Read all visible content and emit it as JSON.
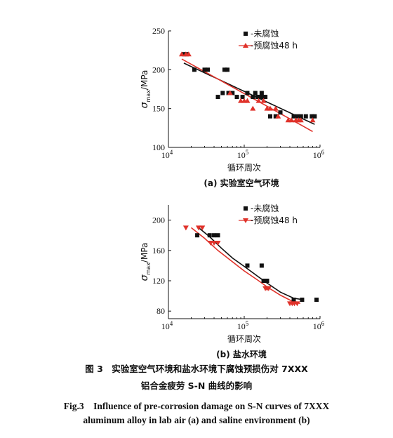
{
  "chart_data": [
    {
      "type": "scatter",
      "panel_label": "(a) 实验室空气环境",
      "xlabel": "循环周次",
      "ylabel_symbol": "σ",
      "ylabel_sub": "max",
      "ylabel_unit": "/MPa",
      "x_scale": "log",
      "xlim": [
        10000,
        1000000
      ],
      "ylim": [
        100,
        250
      ],
      "x_ticks": [
        {
          "v": 10000,
          "base": "10",
          "exp": "4"
        },
        {
          "v": 100000,
          "base": "10",
          "exp": "5"
        },
        {
          "v": 1000000,
          "base": "10",
          "exp": "6"
        }
      ],
      "y_ticks": [
        100,
        150,
        200,
        250
      ],
      "legend_position": "top-right",
      "series": [
        {
          "name": "-未腐蚀",
          "marker": "square",
          "color": "#111111",
          "x": [
            16000,
            17500,
            22000,
            30000,
            33000,
            45000,
            52000,
            55000,
            60000,
            62000,
            70000,
            80000,
            95000,
            110000,
            130000,
            140000,
            150000,
            160000,
            170000,
            180000,
            190000,
            220000,
            260000,
            300000,
            450000,
            500000,
            560000,
            650000,
            780000,
            850000
          ],
          "y": [
            220,
            220,
            200,
            200,
            200,
            165,
            170,
            200,
            200,
            170,
            170,
            165,
            165,
            170,
            165,
            170,
            165,
            165,
            170,
            165,
            165,
            140,
            140,
            145,
            140,
            140,
            140,
            140,
            140,
            140
          ]
        },
        {
          "name": "-预腐蚀48 h",
          "marker": "triangle-up",
          "color": "#e0322a",
          "x": [
            15000,
            17000,
            18500,
            65000,
            90000,
            100000,
            110000,
            130000,
            155000,
            180000,
            200000,
            220000,
            260000,
            280000,
            380000,
            420000,
            480000,
            520000,
            560000,
            800000
          ],
          "y": [
            220,
            220,
            220,
            170,
            160,
            160,
            160,
            150,
            160,
            160,
            150,
            150,
            150,
            140,
            135,
            135,
            135,
            135,
            135,
            135
          ]
        }
      ]
    },
    {
      "type": "scatter",
      "panel_label": "(b) 盐水环境",
      "xlabel": "循环周次",
      "ylabel_symbol": "σ",
      "ylabel_sub": "max",
      "ylabel_unit": "/MPa",
      "x_scale": "log",
      "xlim": [
        10000,
        1000000
      ],
      "ylim": [
        70,
        220
      ],
      "x_ticks": [
        {
          "v": 10000,
          "base": "10",
          "exp": "4"
        },
        {
          "v": 100000,
          "base": "10",
          "exp": "5"
        },
        {
          "v": 1000000,
          "base": "10",
          "exp": "6"
        }
      ],
      "y_ticks": [
        80,
        120,
        160,
        200
      ],
      "legend_position": "top-right",
      "series": [
        {
          "name": "-未腐蚀",
          "marker": "square",
          "color": "#111111",
          "x": [
            24000,
            35000,
            40000,
            45000,
            110000,
            170000,
            180000,
            190000,
            200000,
            450000,
            580000,
            900000
          ],
          "y": [
            180,
            180,
            180,
            180,
            140,
            140,
            120,
            120,
            120,
            95,
            95,
            95
          ],
          "fit_x": [
            25000,
            35000,
            50000,
            70000,
            100000,
            150000,
            200000,
            300000,
            450000,
            600000
          ],
          "fit_y": [
            190,
            178,
            163,
            150,
            139,
            126,
            117,
            105,
            97,
            95
          ]
        },
        {
          "name": "-预腐蚀48 h",
          "marker": "triangle-down",
          "color": "#e0322a",
          "x": [
            17000,
            25000,
            28000,
            36000,
            40000,
            45000,
            190000,
            200000,
            210000,
            400000,
            430000,
            460000,
            500000
          ],
          "y": [
            190,
            190,
            190,
            170,
            170,
            170,
            110,
            110,
            110,
            90,
            90,
            90,
            90
          ],
          "fit_x": [
            20000,
            30000,
            45000,
            70000,
            100000,
            150000,
            200000,
            300000,
            450000,
            550000
          ],
          "fit_y": [
            190,
            176,
            160,
            145,
            133,
            121,
            112,
            101,
            92,
            90
          ]
        }
      ]
    }
  ],
  "caption": {
    "cn_line1": "图 3　实验室空气环境和盐水环境下腐蚀预损伤对 7XXX",
    "cn_line2": "铝合金疲劳 S-N 曲线的影响",
    "en_line1": "Fig.3　Influence of pre-corrosion damage on S-N curves of 7XXX",
    "en_line2": "aluminum alloy in lab air (a) and saline environment (b)"
  }
}
